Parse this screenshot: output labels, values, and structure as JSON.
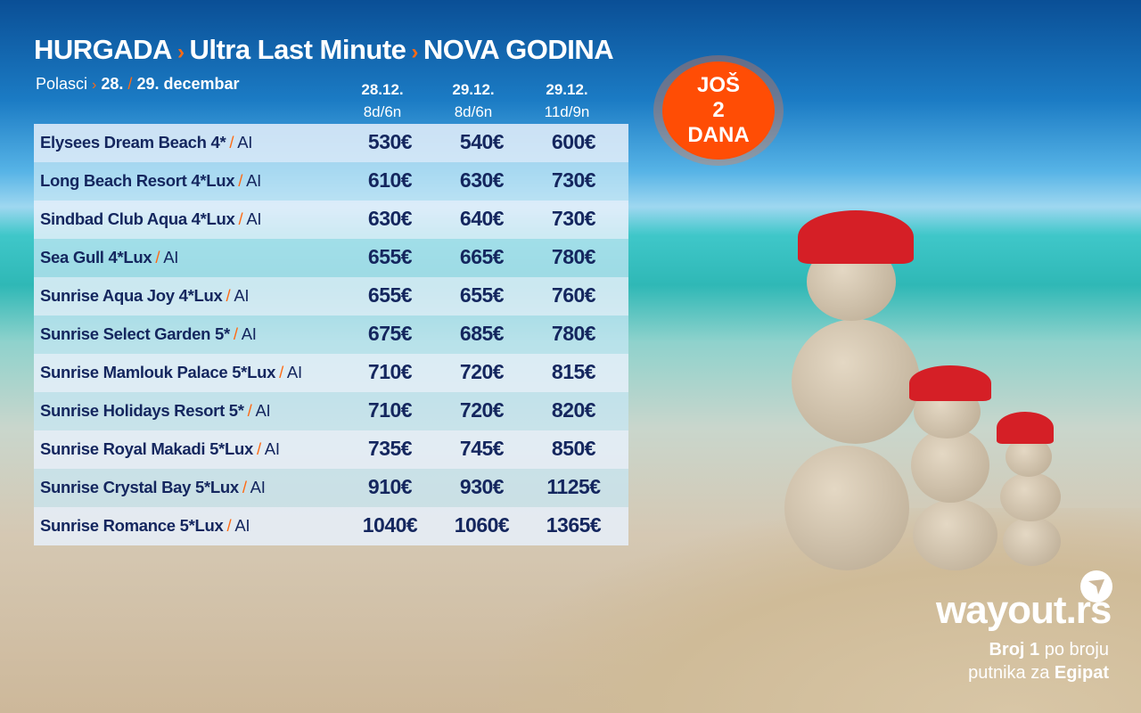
{
  "header": {
    "destination": "HURGADA",
    "offer": "Ultra Last Minute",
    "event": "NOVA GODINA",
    "separator": "›"
  },
  "departures": {
    "label": "Polasci",
    "separator": "›",
    "date1": "28.",
    "slash": "/",
    "date2": "29. decembar"
  },
  "columns": [
    {
      "date": "28.12.",
      "duration": "8d/6n"
    },
    {
      "date": "29.12.",
      "duration": "8d/6n"
    },
    {
      "date": "29.12.",
      "duration": "11d/9n"
    }
  ],
  "hotels": [
    {
      "name": "Elysees Dream Beach 4*",
      "board": "AI",
      "prices": [
        "530€",
        "540€",
        "600€"
      ]
    },
    {
      "name": "Long Beach Resort 4*Lux",
      "board": "AI",
      "prices": [
        "610€",
        "630€",
        "730€"
      ]
    },
    {
      "name": "Sindbad Club Aqua 4*Lux",
      "board": "AI",
      "prices": [
        "630€",
        "640€",
        "730€"
      ]
    },
    {
      "name": "Sea Gull 4*Lux",
      "board": "AI",
      "prices": [
        "655€",
        "665€",
        "780€"
      ]
    },
    {
      "name": "Sunrise Aqua Joy 4*Lux",
      "board": "AI",
      "prices": [
        "655€",
        "655€",
        "760€"
      ]
    },
    {
      "name": "Sunrise Select Garden 5*",
      "board": "AI",
      "prices": [
        "675€",
        "685€",
        "780€"
      ]
    },
    {
      "name": "Sunrise Mamlouk Palace 5*Lux",
      "board": "AI",
      "prices": [
        "710€",
        "720€",
        "815€"
      ]
    },
    {
      "name": "Sunrise Holidays Resort 5*",
      "board": "AI",
      "prices": [
        "710€",
        "720€",
        "820€"
      ]
    },
    {
      "name": "Sunrise Royal Makadi 5*Lux",
      "board": "AI",
      "prices": [
        "735€",
        "745€",
        "850€"
      ]
    },
    {
      "name": "Sunrise Crystal Bay 5*Lux",
      "board": "AI",
      "prices": [
        "910€",
        "930€",
        "1125€"
      ]
    },
    {
      "name": "Sunrise Romance 5*Lux",
      "board": "AI",
      "prices": [
        "1040€",
        "1060€",
        "1365€"
      ]
    }
  ],
  "badge": {
    "line1": "JOŠ",
    "line2": "2",
    "line3": "DANA"
  },
  "brand": {
    "logo": "wayout.rs",
    "tag_bold1": "Broj 1",
    "tag_text1": "po broju",
    "tag_text2": "putnika za",
    "tag_bold2": "Egipat"
  },
  "colors": {
    "accent": "#ff6a13",
    "text_dark": "#14265e",
    "badge": "#ff4d05"
  }
}
